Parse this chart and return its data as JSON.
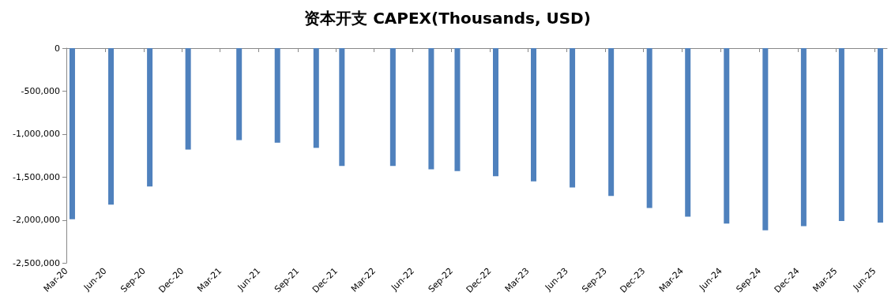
{
  "chart_data": {
    "type": "bar",
    "title": "资本开支 CAPEX(Thousands, USD)",
    "color": "#4f81bd",
    "x": [
      "2020-03-15",
      "2020-06-15",
      "2020-09-15",
      "2020-12-15",
      "2021-04-15",
      "2021-07-15",
      "2021-10-15",
      "2021-12-15",
      "2022-04-15",
      "2022-07-15",
      "2022-09-15",
      "2022-12-15",
      "2023-03-15",
      "2023-06-15",
      "2023-09-15",
      "2023-12-15",
      "2024-03-15",
      "2024-06-15",
      "2024-09-15",
      "2024-12-15",
      "2025-03-15",
      "2025-06-15"
    ],
    "values": [
      -1990000,
      -1820000,
      -1610000,
      -1180000,
      -1070000,
      -1100000,
      -1160000,
      -1370000,
      -1370000,
      -1410000,
      -1430000,
      -1490000,
      -1550000,
      -1620000,
      -1720000,
      -1860000,
      -1960000,
      -2040000,
      -2120000,
      -2070000,
      -2010000,
      -2030000
    ],
    "xlim": [
      "2020-03",
      "2025-07"
    ],
    "xticks": [
      {
        "value": "2020-03",
        "label": "Mar-20"
      },
      {
        "value": "2020-06",
        "label": "Jun-20"
      },
      {
        "value": "2020-09",
        "label": "Sep-20"
      },
      {
        "value": "2020-12",
        "label": "Dec-20"
      },
      {
        "value": "2021-03",
        "label": "Mar-21"
      },
      {
        "value": "2021-06",
        "label": "Jun-21"
      },
      {
        "value": "2021-09",
        "label": "Sep-21"
      },
      {
        "value": "2021-12",
        "label": "Dec-21"
      },
      {
        "value": "2022-03",
        "label": "Mar-22"
      },
      {
        "value": "2022-06",
        "label": "Jun-22"
      },
      {
        "value": "2022-09",
        "label": "Sep-22"
      },
      {
        "value": "2022-12",
        "label": "Dec-22"
      },
      {
        "value": "2023-03",
        "label": "Mar-23"
      },
      {
        "value": "2023-06",
        "label": "Jun-23"
      },
      {
        "value": "2023-09",
        "label": "Sep-23"
      },
      {
        "value": "2023-12",
        "label": "Dec-23"
      },
      {
        "value": "2024-03",
        "label": "Mar-24"
      },
      {
        "value": "2024-06",
        "label": "Jun-24"
      },
      {
        "value": "2024-09",
        "label": "Sep-24"
      },
      {
        "value": "2024-12",
        "label": "Dec-24"
      },
      {
        "value": "2025-03",
        "label": "Mar-25"
      },
      {
        "value": "2025-06",
        "label": "Jun-25"
      }
    ],
    "ylim": [
      -2500000,
      0
    ],
    "yticks": [
      {
        "value": 0,
        "label": "0"
      },
      {
        "value": -500000,
        "label": "-500,000"
      },
      {
        "value": -1000000,
        "label": "-1,000,000"
      },
      {
        "value": -1500000,
        "label": "-1,500,000"
      },
      {
        "value": -2000000,
        "label": "-2,000,000"
      },
      {
        "value": -2500000,
        "label": "-2,500,000"
      }
    ],
    "grid": false
  }
}
